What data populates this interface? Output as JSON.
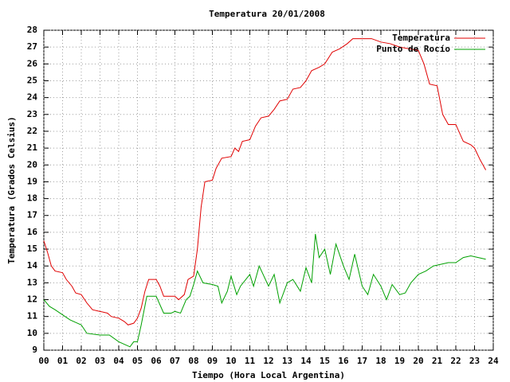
{
  "chart_data": {
    "type": "line",
    "title": "Temperatura 20/01/2008",
    "x_label": "Tiempo (Hora Local Argentina)",
    "y_label": "Temperatura (Grados Celsius)",
    "xlim": [
      0,
      24
    ],
    "ylim": [
      9,
      28
    ],
    "grid": true,
    "legend": "top-right",
    "xticks": [
      {
        "value": 0,
        "label": "00"
      },
      {
        "value": 1,
        "label": "01"
      },
      {
        "value": 2,
        "label": "02"
      },
      {
        "value": 3,
        "label": "03"
      },
      {
        "value": 4,
        "label": "04"
      },
      {
        "value": 5,
        "label": "05"
      },
      {
        "value": 6,
        "label": "06"
      },
      {
        "value": 7,
        "label": "07"
      },
      {
        "value": 8,
        "label": "08"
      },
      {
        "value": 9,
        "label": "09"
      },
      10,
      11,
      12,
      13,
      14,
      15,
      16,
      17,
      18,
      19,
      20,
      21,
      22,
      23,
      24
    ],
    "yticks": [
      9,
      10,
      11,
      12,
      13,
      14,
      15,
      16,
      17,
      18,
      19,
      20,
      21,
      22,
      23,
      24,
      25,
      26,
      27,
      28
    ],
    "series": [
      {
        "name": "Temperatura",
        "color": "#e00000",
        "x": [
          0,
          0.2,
          0.4,
          0.6,
          1,
          1.2,
          1.5,
          1.7,
          2,
          2.3,
          2.6,
          3,
          3.4,
          3.6,
          4,
          4.3,
          4.5,
          4.8,
          5,
          5.2,
          5.4,
          5.6,
          6,
          6.2,
          6.4,
          7,
          7.2,
          7.5,
          7.7,
          8,
          8.2,
          8.4,
          8.6,
          9,
          9.2,
          9.5,
          10,
          10.2,
          10.4,
          10.6,
          11,
          11.3,
          11.6,
          12,
          12.3,
          12.6,
          13,
          13.3,
          13.7,
          14,
          14.3,
          14.7,
          15,
          15.4,
          15.8,
          16.2,
          16.5,
          17,
          17.5,
          18,
          18.5,
          19,
          19.5,
          20,
          20.3,
          20.6,
          21,
          21.3,
          21.6,
          22,
          22.4,
          22.8,
          23,
          23.3,
          23.6
        ],
        "values": [
          15.5,
          14.8,
          14,
          13.7,
          13.6,
          13.2,
          12.8,
          12.4,
          12.3,
          11.8,
          11.4,
          11.3,
          11.2,
          11,
          10.9,
          10.7,
          10.5,
          10.6,
          10.9,
          11.5,
          12.5,
          13.2,
          13.2,
          12.8,
          12.2,
          12.2,
          12,
          12.3,
          13.2,
          13.4,
          15,
          17.5,
          19,
          19.1,
          19.8,
          20.4,
          20.5,
          21,
          20.8,
          21.4,
          21.5,
          22.3,
          22.8,
          22.9,
          23.3,
          23.8,
          23.9,
          24.5,
          24.6,
          25,
          25.6,
          25.8,
          26,
          26.7,
          26.9,
          27.2,
          27.5,
          27.5,
          27.5,
          27.3,
          27.2,
          27,
          26.9,
          26.8,
          26,
          24.8,
          24.7,
          23,
          22.4,
          22.4,
          21.4,
          21.2,
          21,
          20.3,
          19.7
        ]
      },
      {
        "name": "Punto de Rocío",
        "color": "#00a000",
        "x": [
          0,
          0.3,
          0.6,
          1,
          1.4,
          1.8,
          2,
          2.3,
          3,
          3.5,
          4,
          4.4,
          4.6,
          4.8,
          5,
          5.2,
          5.5,
          6,
          6.2,
          6.4,
          6.8,
          7,
          7.3,
          7.6,
          7.8,
          8,
          8.2,
          8.5,
          9,
          9.3,
          9.5,
          9.8,
          10,
          10.3,
          10.5,
          11,
          11.2,
          11.5,
          12,
          12.3,
          12.6,
          13,
          13.3,
          13.7,
          14,
          14.3,
          14.5,
          14.7,
          15,
          15.3,
          15.6,
          16,
          16.3,
          16.6,
          17,
          17.3,
          17.6,
          18,
          18.3,
          18.6,
          19,
          19.3,
          19.6,
          20,
          20.4,
          20.8,
          21.2,
          21.6,
          22,
          22.4,
          22.8,
          23.2,
          23.6
        ],
        "values": [
          12,
          11.6,
          11.4,
          11.1,
          10.8,
          10.6,
          10.5,
          10,
          9.9,
          9.9,
          9.5,
          9.3,
          9.2,
          9.5,
          9.5,
          10.5,
          12.2,
          12.2,
          11.7,
          11.2,
          11.2,
          11.3,
          11.2,
          12,
          12.2,
          12.9,
          13.7,
          13,
          12.9,
          12.8,
          11.8,
          12.5,
          13.4,
          12.3,
          12.8,
          13.5,
          12.8,
          14,
          12.8,
          13.5,
          11.8,
          13,
          13.2,
          12.5,
          13.9,
          13,
          15.9,
          14.5,
          15,
          13.5,
          15.3,
          14,
          13.2,
          14.7,
          12.8,
          12.3,
          13.5,
          12.8,
          12,
          12.9,
          12.3,
          12.4,
          13,
          13.5,
          13.7,
          14,
          14.1,
          14.2,
          14.2,
          14.5,
          14.6,
          14.5,
          14.4
        ]
      }
    ]
  }
}
